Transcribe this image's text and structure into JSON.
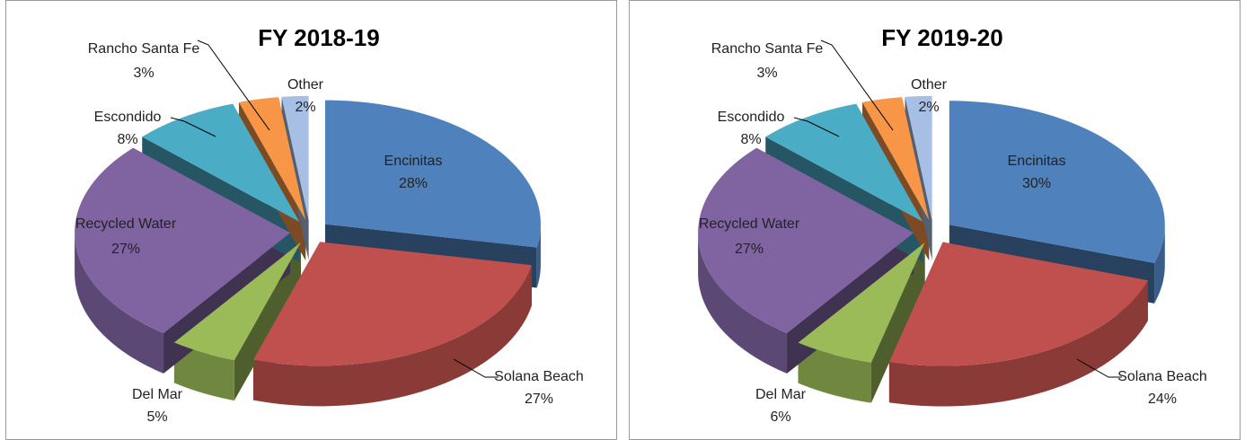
{
  "chart_data": [
    {
      "type": "pie3d",
      "title": "FY 2018-19",
      "categories": [
        "Encinitas",
        "Solana Beach",
        "Del Mar",
        "Recycled Water",
        "Escondido",
        "Rancho Santa Fe",
        "Other"
      ],
      "values": [
        28,
        27,
        5,
        27,
        8,
        3,
        2
      ],
      "value_labels": [
        "28%",
        "27%",
        "5%",
        "27%",
        "8%",
        "3%",
        "2%"
      ],
      "colors": [
        "#4f81bd",
        "#c0504d",
        "#9bbb59",
        "#8064a2",
        "#4bacc6",
        "#f79646",
        "#a7bfe4"
      ]
    },
    {
      "type": "pie3d",
      "title": "FY 2019-20",
      "categories": [
        "Encinitas",
        "Solana Beach",
        "Del Mar",
        "Recycled Water",
        "Escondido",
        "Rancho Santa Fe",
        "Other"
      ],
      "values": [
        30,
        24,
        6,
        27,
        8,
        3,
        2
      ],
      "value_labels": [
        "30%",
        "24%",
        "6%",
        "27%",
        "8%",
        "3%",
        "2%"
      ],
      "colors": [
        "#4f81bd",
        "#c0504d",
        "#9bbb59",
        "#8064a2",
        "#4bacc6",
        "#f79646",
        "#a7bfe4"
      ]
    }
  ]
}
